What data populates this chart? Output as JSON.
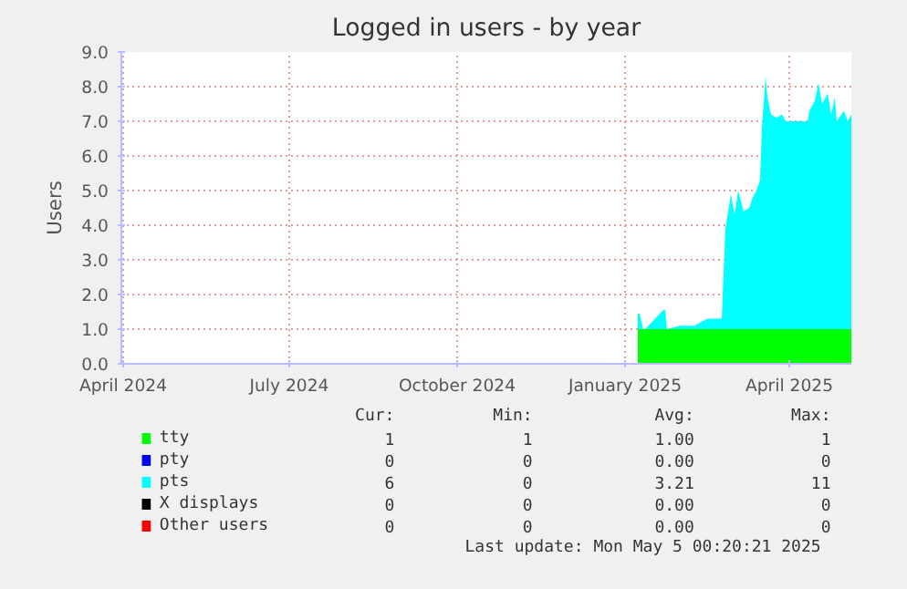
{
  "chart_data": {
    "type": "area",
    "stacked": true,
    "title": "Logged in users - by year",
    "ylabel": "Users",
    "x": [
      "2025-01-08",
      "2025-01-09",
      "2025-01-11",
      "2025-01-12",
      "2025-01-22",
      "2025-01-23",
      "2025-01-24",
      "2025-01-31",
      "2025-02-08",
      "2025-02-15",
      "2025-02-23",
      "2025-02-25",
      "2025-02-28",
      "2025-03-02",
      "2025-03-04",
      "2025-03-07",
      "2025-03-10",
      "2025-03-12",
      "2025-03-14",
      "2025-03-16",
      "2025-03-17",
      "2025-03-19",
      "2025-03-20",
      "2025-03-22",
      "2025-03-25",
      "2025-03-28",
      "2025-03-30",
      "2025-04-11",
      "2025-04-12",
      "2025-04-15",
      "2025-04-17",
      "2025-04-19",
      "2025-04-22",
      "2025-04-24",
      "2025-04-26",
      "2025-04-27",
      "2025-05-01",
      "2025-05-03",
      "2025-05-05"
    ],
    "series": [
      {
        "name": "tty",
        "color": "#00ff00",
        "values": [
          1,
          1,
          1,
          1,
          1,
          1,
          1,
          1,
          1,
          1,
          1,
          1,
          1,
          1,
          1,
          1,
          1,
          1,
          1,
          1,
          1,
          1,
          1,
          1,
          1,
          1,
          1,
          1,
          1,
          1,
          1,
          1,
          1,
          1,
          1,
          1,
          1,
          1,
          1
        ]
      },
      {
        "name": "pty",
        "color": "#0000ff",
        "values": [
          null,
          null,
          null,
          null,
          null,
          null,
          null,
          null,
          null,
          null,
          null,
          null,
          null,
          null,
          null,
          null,
          null,
          null,
          null,
          null,
          null,
          null,
          null,
          null,
          null,
          null,
          null,
          null,
          null,
          null,
          null,
          null,
          null,
          null,
          null,
          null,
          null,
          null,
          null
        ]
      },
      {
        "name": "pts",
        "color": "#00ffff",
        "values": [
          0.45,
          0.45,
          0,
          0,
          0.55,
          0.55,
          0,
          0.1,
          0.1,
          0.3,
          0.3,
          2.9,
          3.9,
          3.3,
          4.0,
          3.4,
          3.5,
          3.8,
          4.0,
          4.3,
          5.8,
          7.3,
          6.7,
          6.2,
          6.1,
          6.2,
          6.0,
          6.0,
          6.3,
          6.6,
          7.1,
          6.5,
          6.8,
          6.2,
          6.7,
          6.0,
          6.3,
          6.0,
          6.2
        ]
      },
      {
        "name": "X displays",
        "color": "#000000",
        "values": [
          null,
          null,
          null,
          null,
          null,
          null,
          null,
          null,
          null,
          null,
          null,
          null,
          null,
          null,
          null,
          null,
          null,
          null,
          null,
          null,
          null,
          null,
          null,
          null,
          null,
          null,
          null,
          null,
          null,
          null,
          null,
          null,
          null,
          null,
          null,
          null,
          null,
          null,
          null
        ]
      },
      {
        "name": "Other users",
        "color": "#ff0000",
        "values": [
          null,
          null,
          null,
          null,
          null,
          null,
          null,
          null,
          null,
          null,
          null,
          null,
          null,
          null,
          null,
          null,
          null,
          null,
          null,
          null,
          null,
          null,
          null,
          null,
          null,
          null,
          null,
          null,
          null,
          null,
          null,
          null,
          null,
          null,
          null,
          null,
          null,
          null,
          null
        ]
      }
    ],
    "xlim": [
      "2024-03-31",
      "2025-05-05"
    ],
    "xticks": [
      {
        "value": "2024-04-01",
        "label": "April 2024"
      },
      {
        "value": "2024-07-01",
        "label": "July 2024"
      },
      {
        "value": "2024-10-01",
        "label": "October 2024"
      },
      {
        "value": "2025-01-01",
        "label": "January 2025"
      },
      {
        "value": "2025-04-01",
        "label": "April 2025"
      }
    ],
    "ylim": [
      0,
      9
    ],
    "yticks": [
      {
        "value": 0,
        "label": "0.0"
      },
      {
        "value": 1,
        "label": "1.0"
      },
      {
        "value": 2,
        "label": "2.0"
      },
      {
        "value": 3,
        "label": "3.0"
      },
      {
        "value": 4,
        "label": "4.0"
      },
      {
        "value": 5,
        "label": "5.0"
      },
      {
        "value": 6,
        "label": "6.0"
      },
      {
        "value": 7,
        "label": "7.0"
      },
      {
        "value": 8,
        "label": "8.0"
      },
      {
        "value": 9,
        "label": "9.0"
      }
    ],
    "grid": true,
    "legend": "bottom",
    "annotations": [
      "Cur:",
      "Min:",
      "Avg:",
      "Max:",
      "1",
      "1",
      "1.00",
      "1",
      "0",
      "0",
      "0.00",
      "0",
      "6",
      "0",
      "3.21",
      "11",
      "0",
      "0",
      "0.00",
      "0",
      "0",
      "0",
      "0.00",
      "0",
      "Last update: Mon May  5 00:20:21 2025"
    ]
  }
}
